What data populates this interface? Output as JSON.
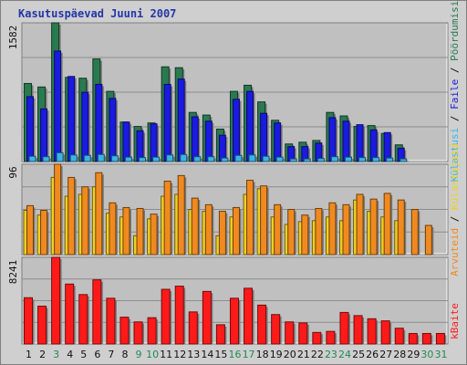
{
  "title": "Kasutuspäevad Juuni 2007",
  "chart_data": {
    "type": "bar",
    "categories": [
      "1",
      "2",
      "3",
      "4",
      "5",
      "6",
      "7",
      "8",
      "9",
      "10",
      "11",
      "12",
      "13",
      "14",
      "15",
      "16",
      "17",
      "18",
      "19",
      "20",
      "21",
      "22",
      "23",
      "24",
      "25",
      "26",
      "27",
      "28",
      "29",
      "30",
      "31"
    ],
    "weekend_days": [
      "3",
      "9",
      "10",
      "16",
      "17",
      "23",
      "24",
      "30",
      "31"
    ],
    "grid": true,
    "panels": [
      {
        "id": "visits",
        "max_label": "1582",
        "ylim": [
          0,
          1582
        ],
        "series": [
          {
            "name": "Pöördumisi",
            "color": "#2a7a50",
            "values": [
              890,
              850,
              1582,
              960,
              950,
              1170,
              800,
              450,
              400,
              440,
              1080,
              1070,
              560,
              530,
              370,
              800,
              870,
              680,
              470,
              200,
              220,
              240,
              560,
              520,
              400,
              410,
              320,
              190,
              0,
              0,
              0
            ]
          },
          {
            "name": "Faile",
            "color": "#1a1ae0",
            "values": [
              740,
              600,
              1260,
              970,
              790,
              880,
              720,
              450,
              350,
              430,
              880,
              940,
              510,
              460,
              300,
              710,
              800,
              550,
              440,
              170,
              170,
              210,
              500,
              460,
              420,
              360,
              330,
              150,
              0,
              0,
              0
            ]
          },
          {
            "name": "Külastusi",
            "color": "#3ab4e8",
            "values": [
              60,
              55,
              100,
              75,
              70,
              80,
              65,
              50,
              45,
              50,
              75,
              80,
              55,
              55,
              40,
              70,
              75,
              60,
              50,
              30,
              30,
              35,
              55,
              50,
              45,
              45,
              40,
              30,
              0,
              0,
              0
            ]
          }
        ]
      },
      {
        "id": "sites",
        "max_label": "96",
        "ylim": [
          0,
          96
        ],
        "series": [
          {
            "name": "Külastajaid",
            "color": "#f0d020",
            "values": [
              47,
              42,
              82,
              62,
              64,
              72,
              44,
              40,
              20,
              38,
              62,
              64,
              48,
              46,
              20,
              40,
              64,
              70,
              40,
              32,
              35,
              36,
              40,
              36,
              58,
              46,
              40,
              36,
              0,
              0,
              0
            ]
          },
          {
            "name": "Arvuteid",
            "color": "#f08a20",
            "values": [
              52,
              47,
              96,
              82,
              72,
              87,
              55,
              50,
              49,
              43,
              78,
              84,
              60,
              53,
              46,
              50,
              79,
              73,
              53,
              48,
              42,
              49,
              55,
              53,
              64,
              59,
              65,
              58,
              48,
              31,
              0
            ]
          }
        ]
      },
      {
        "id": "kbytes",
        "max_label": "8241",
        "ylim": [
          0,
          8241
        ],
        "series": [
          {
            "name": "kBaite",
            "color": "#ff1a1a",
            "values": [
              4400,
              3600,
              8241,
              5700,
              4700,
              6100,
              4350,
              2550,
              2100,
              2500,
              5200,
              5500,
              3050,
              5000,
              1830,
              4350,
              5300,
              3700,
              2800,
              2100,
              2000,
              1100,
              1200,
              3000,
              2700,
              2400,
              2200,
              1500,
              1000,
              1000,
              1000
            ]
          }
        ]
      }
    ]
  }
}
